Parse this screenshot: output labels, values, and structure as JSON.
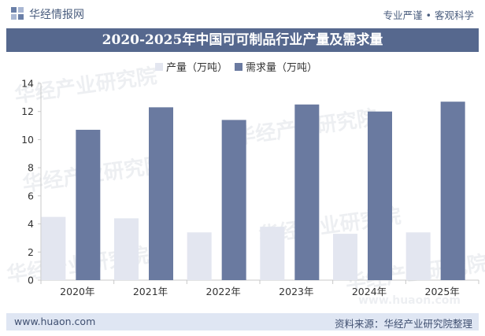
{
  "header": {
    "brand": "华经情报网",
    "slogan": "专业严谨 • 客观科学",
    "logo_icon": "huajing-logo-icon"
  },
  "title": "2020-2025年中国可可制品行业产量及需求量",
  "watermark": "华经产业研究院",
  "watermark_url": "www.huaon.com",
  "footer": {
    "url": "www.huaon.com",
    "source": "资料来源：华经产业研究院整理"
  },
  "colors": {
    "production": "#e3e6f0",
    "demand": "#6a7aa0",
    "title_bg": "#56688e",
    "footer_bg": "#dfe6f3"
  },
  "chart_data": {
    "type": "bar",
    "categories": [
      "2020年",
      "2021年",
      "2022年",
      "2023年",
      "2024年",
      "2025年"
    ],
    "series": [
      {
        "name": "产量（万吨）",
        "values": [
          4.5,
          4.4,
          3.4,
          3.8,
          3.3,
          3.4
        ]
      },
      {
        "name": "需求量（万吨）",
        "values": [
          10.7,
          12.3,
          11.4,
          12.5,
          12.0,
          12.7
        ]
      }
    ],
    "ylim": [
      0,
      14
    ],
    "yticks": [
      "0",
      "2",
      "4",
      "6",
      "8",
      "10",
      "12",
      "14"
    ],
    "grid": false,
    "legend": "top"
  }
}
